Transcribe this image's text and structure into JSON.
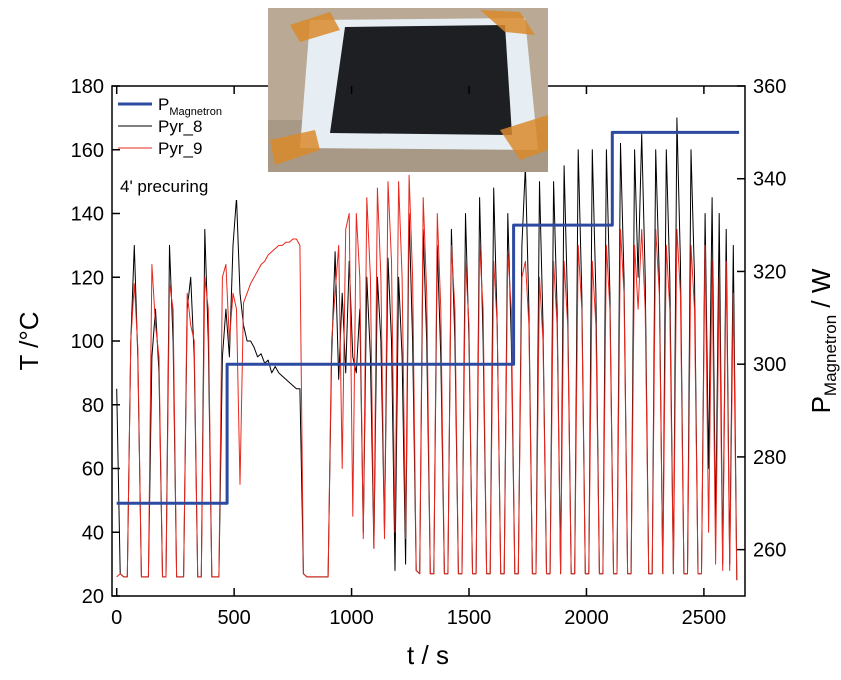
{
  "chart_data": {
    "type": "line",
    "xlabel": "t / s",
    "ylabel": "T /°C",
    "y2label": {
      "text": "P",
      "subscript": "Magnetron",
      "suffix": " / W"
    },
    "annotation": "4' precuring",
    "xlim": [
      -20,
      2675
    ],
    "xticks": [
      0,
      500,
      1000,
      1500,
      2000,
      2500
    ],
    "ylim": [
      20,
      180
    ],
    "yticks": [
      20,
      40,
      60,
      80,
      100,
      120,
      140,
      160,
      180
    ],
    "y2lim": [
      250,
      360
    ],
    "y2ticks": [
      260,
      280,
      300,
      320,
      340,
      360
    ],
    "x": [
      0,
      15,
      30,
      45,
      60,
      75,
      90,
      105,
      120,
      135,
      150,
      165,
      180,
      195,
      210,
      225,
      240,
      255,
      270,
      285,
      300,
      315,
      330,
      345,
      360,
      375,
      390,
      405,
      420,
      435,
      450,
      465,
      480,
      495,
      510,
      525,
      540,
      555,
      570,
      585,
      600,
      615,
      630,
      645,
      660,
      675,
      690,
      705,
      720,
      735,
      750,
      765,
      780,
      795,
      810,
      825,
      840,
      855,
      870,
      885,
      900,
      915,
      930,
      945,
      960,
      975,
      990,
      1005,
      1020,
      1035,
      1050,
      1065,
      1080,
      1095,
      1110,
      1125,
      1140,
      1155,
      1170,
      1185,
      1200,
      1215,
      1230,
      1245,
      1260,
      1275,
      1290,
      1305,
      1320,
      1335,
      1350,
      1365,
      1380,
      1395,
      1410,
      1425,
      1440,
      1455,
      1470,
      1485,
      1500,
      1515,
      1530,
      1545,
      1560,
      1575,
      1590,
      1605,
      1620,
      1635,
      1650,
      1665,
      1680,
      1695,
      1710,
      1725,
      1740,
      1755,
      1770,
      1785,
      1800,
      1815,
      1830,
      1845,
      1860,
      1875,
      1890,
      1905,
      1920,
      1935,
      1950,
      1965,
      1980,
      1995,
      2010,
      2025,
      2040,
      2055,
      2070,
      2085,
      2100,
      2115,
      2130,
      2145,
      2160,
      2175,
      2190,
      2205,
      2220,
      2235,
      2250,
      2265,
      2280,
      2295,
      2310,
      2325,
      2340,
      2355,
      2370,
      2385,
      2400,
      2415,
      2430,
      2445,
      2460,
      2475,
      2490,
      2505,
      2520,
      2535,
      2550,
      2565,
      2580,
      2595,
      2610,
      2625,
      2640
    ],
    "series": [
      {
        "name": "P",
        "subscript": "Magnetron",
        "color": "#2c4aa0",
        "axis": "y2",
        "x": [
          0,
          470,
          470,
          1690,
          1690,
          2110,
          2110,
          2650
        ],
        "values": [
          270,
          270,
          300,
          300,
          330,
          330,
          350,
          350
        ]
      },
      {
        "name": "Pyr_8",
        "color": "#000000",
        "values": [
          85,
          27,
          26,
          26,
          100,
          130,
          95,
          26,
          26,
          26,
          95,
          110,
          90,
          26,
          26,
          130,
          100,
          26,
          26,
          26,
          110,
          120,
          95,
          26,
          26,
          135,
          100,
          26,
          26,
          26,
          95,
          110,
          95,
          130,
          145,
          115,
          105,
          100,
          100,
          98,
          95,
          96,
          93,
          94,
          90,
          92,
          90,
          89,
          88,
          87,
          86,
          85,
          85,
          27,
          26,
          26,
          26,
          26,
          26,
          26,
          26,
          95,
          128,
          88,
          115,
          90,
          125,
          95,
          90,
          110,
          40,
          120,
          95,
          35,
          120,
          100,
          40,
          126,
          100,
          28,
          120,
          95,
          30,
          140,
          100,
          28,
          27,
          135,
          100,
          27,
          27,
          130,
          95,
          27,
          27,
          135,
          100,
          27,
          27,
          140,
          100,
          27,
          27,
          145,
          100,
          27,
          27,
          148,
          105,
          27,
          27,
          140,
          100,
          27,
          27,
          130,
          155,
          110,
          27,
          27,
          150,
          105,
          27,
          27,
          150,
          110,
          27,
          155,
          110,
          27,
          27,
          160,
          115,
          27,
          27,
          160,
          115,
          27,
          27,
          160,
          115,
          27,
          27,
          162,
          120,
          27,
          27,
          160,
          120,
          165,
          120,
          27,
          27,
          160,
          120,
          27,
          160,
          120,
          27,
          170,
          125,
          27,
          27,
          160,
          120,
          27,
          27,
          140,
          60,
          145,
          40,
          140,
          30,
          135,
          30,
          130,
          25
        ]
      },
      {
        "name": "Pyr_9",
        "color": "#e8281e",
        "values": [
          26,
          27,
          26,
          26,
          100,
          118,
          98,
          26,
          26,
          26,
          124,
          105,
          95,
          26,
          26,
          118,
          110,
          26,
          26,
          26,
          115,
          105,
          100,
          26,
          26,
          120,
          110,
          26,
          26,
          26,
          120,
          124,
          100,
          115,
          110,
          55,
          112,
          115,
          118,
          120,
          122,
          124,
          125,
          127,
          128,
          129,
          130,
          130,
          131,
          131,
          132,
          132,
          130,
          27,
          26,
          26,
          26,
          26,
          26,
          26,
          26,
          100,
          115,
          130,
          60,
          135,
          140,
          45,
          140,
          120,
          38,
          145,
          120,
          35,
          148,
          120,
          38,
          150,
          125,
          40,
          150,
          120,
          38,
          152,
          120,
          28,
          27,
          145,
          115,
          27,
          27,
          140,
          110,
          27,
          27,
          130,
          110,
          27,
          27,
          125,
          105,
          27,
          27,
          130,
          110,
          27,
          27,
          125,
          105,
          27,
          27,
          128,
          110,
          27,
          27,
          120,
          125,
          105,
          27,
          27,
          120,
          100,
          27,
          27,
          125,
          105,
          27,
          125,
          105,
          27,
          27,
          130,
          110,
          27,
          27,
          125,
          105,
          27,
          27,
          130,
          110,
          27,
          27,
          135,
          115,
          27,
          27,
          130,
          110,
          135,
          110,
          27,
          27,
          135,
          115,
          27,
          130,
          110,
          27,
          135,
          115,
          27,
          27,
          130,
          110,
          27,
          27,
          130,
          40,
          125,
          30,
          120,
          28,
          125,
          28,
          115,
          25
        ]
      }
    ]
  }
}
